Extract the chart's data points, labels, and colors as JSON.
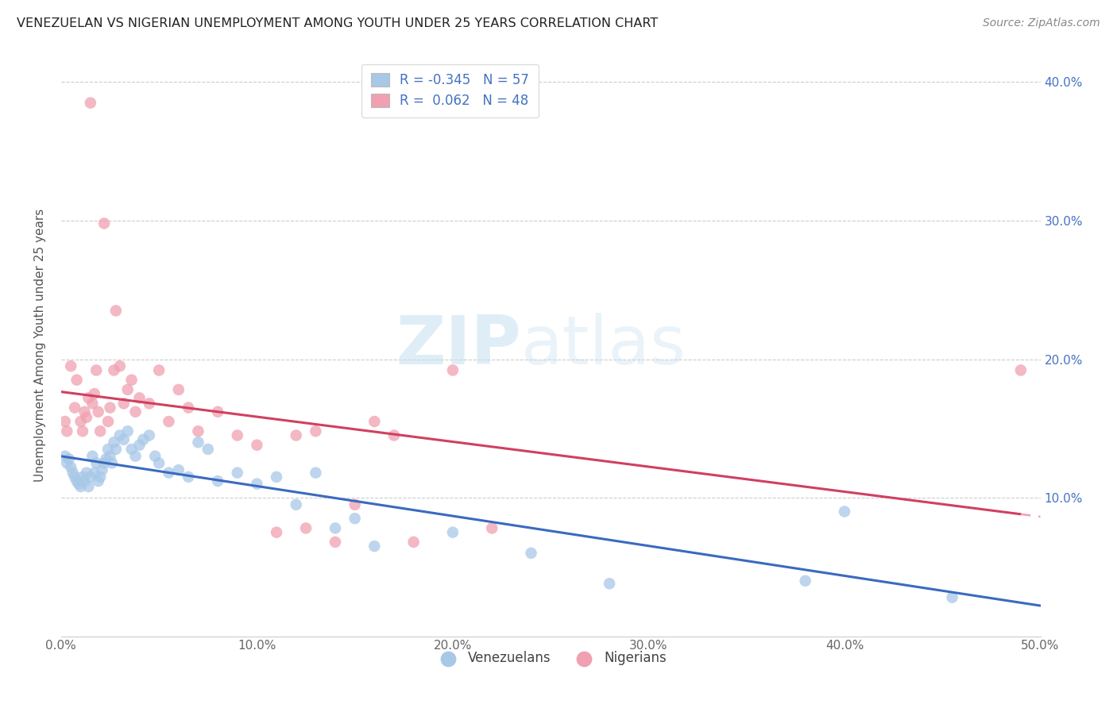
{
  "title": "VENEZUELAN VS NIGERIAN UNEMPLOYMENT AMONG YOUTH UNDER 25 YEARS CORRELATION CHART",
  "source": "Source: ZipAtlas.com",
  "ylabel": "Unemployment Among Youth under 25 years",
  "xlim": [
    0.0,
    0.5
  ],
  "ylim": [
    0.0,
    0.42
  ],
  "xticks": [
    0.0,
    0.1,
    0.2,
    0.3,
    0.4,
    0.5
  ],
  "yticks": [
    0.1,
    0.2,
    0.3,
    0.4
  ],
  "ytick_labels_right": [
    "10.0%",
    "20.0%",
    "30.0%",
    "40.0%"
  ],
  "xtick_labels": [
    "0.0%",
    "10.0%",
    "20.0%",
    "30.0%",
    "40.0%",
    "50.0%"
  ],
  "venezuelan_color": "#a8c8e8",
  "nigerian_color": "#f0a0b0",
  "venezuelan_line_color": "#3a6abf",
  "nigerian_line_solid_color": "#d04060",
  "nigerian_line_dash_color": "#f0a0b0",
  "watermark_zip": "ZIP",
  "watermark_atlas": "atlas",
  "legend_R_venezuelan": "-0.345",
  "legend_N_venezuelan": "57",
  "legend_R_nigerian": " 0.062",
  "legend_N_nigerian": "48",
  "venezuelan_x": [
    0.002,
    0.003,
    0.004,
    0.005,
    0.006,
    0.007,
    0.008,
    0.009,
    0.01,
    0.011,
    0.012,
    0.013,
    0.014,
    0.015,
    0.016,
    0.017,
    0.018,
    0.019,
    0.02,
    0.021,
    0.022,
    0.023,
    0.024,
    0.025,
    0.026,
    0.027,
    0.028,
    0.03,
    0.032,
    0.034,
    0.036,
    0.038,
    0.04,
    0.042,
    0.045,
    0.048,
    0.05,
    0.055,
    0.06,
    0.065,
    0.07,
    0.075,
    0.08,
    0.09,
    0.1,
    0.11,
    0.12,
    0.13,
    0.14,
    0.15,
    0.16,
    0.2,
    0.24,
    0.28,
    0.38,
    0.4,
    0.455
  ],
  "venezuelan_y": [
    0.13,
    0.125,
    0.128,
    0.122,
    0.118,
    0.115,
    0.112,
    0.11,
    0.108,
    0.115,
    0.112,
    0.118,
    0.108,
    0.115,
    0.13,
    0.118,
    0.125,
    0.112,
    0.115,
    0.12,
    0.125,
    0.128,
    0.135,
    0.13,
    0.125,
    0.14,
    0.135,
    0.145,
    0.142,
    0.148,
    0.135,
    0.13,
    0.138,
    0.142,
    0.145,
    0.13,
    0.125,
    0.118,
    0.12,
    0.115,
    0.14,
    0.135,
    0.112,
    0.118,
    0.11,
    0.115,
    0.095,
    0.118,
    0.078,
    0.085,
    0.065,
    0.075,
    0.06,
    0.038,
    0.04,
    0.09,
    0.028
  ],
  "nigerian_x": [
    0.002,
    0.003,
    0.005,
    0.007,
    0.008,
    0.01,
    0.011,
    0.012,
    0.013,
    0.014,
    0.015,
    0.016,
    0.017,
    0.018,
    0.019,
    0.02,
    0.022,
    0.024,
    0.025,
    0.027,
    0.028,
    0.03,
    0.032,
    0.034,
    0.036,
    0.038,
    0.04,
    0.045,
    0.05,
    0.055,
    0.06,
    0.065,
    0.07,
    0.08,
    0.09,
    0.1,
    0.11,
    0.12,
    0.125,
    0.13,
    0.14,
    0.15,
    0.16,
    0.17,
    0.18,
    0.2,
    0.22,
    0.49
  ],
  "nigerian_y": [
    0.155,
    0.148,
    0.195,
    0.165,
    0.185,
    0.155,
    0.148,
    0.162,
    0.158,
    0.172,
    0.385,
    0.168,
    0.175,
    0.192,
    0.162,
    0.148,
    0.298,
    0.155,
    0.165,
    0.192,
    0.235,
    0.195,
    0.168,
    0.178,
    0.185,
    0.162,
    0.172,
    0.168,
    0.192,
    0.155,
    0.178,
    0.165,
    0.148,
    0.162,
    0.145,
    0.138,
    0.075,
    0.145,
    0.078,
    0.148,
    0.068,
    0.095,
    0.155,
    0.145,
    0.068,
    0.192,
    0.078,
    0.192
  ],
  "background_color": "#ffffff",
  "grid_color": "#cccccc"
}
